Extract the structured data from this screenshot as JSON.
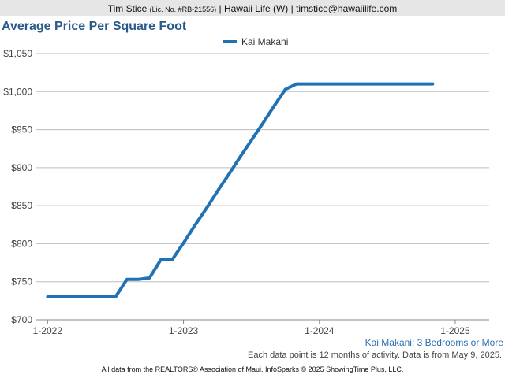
{
  "header": {
    "agent": "Tim Stice",
    "license": "(Lic. No. #RB-21556)",
    "rest": "| Hawaii Life (W) | timstice@hawaiilife.com"
  },
  "title": "Average Price Per Square Foot",
  "subtitle": "Kai Makani: 3 Bedrooms or More",
  "note": "Each data point is 12 months of activity. Data is from May 9, 2025.",
  "footer": "All data from the REALTORS® Association of Maui. InfoSparks © 2025 ShowingTime Plus, LLC.",
  "colors": {
    "series": "#2171b5",
    "grid": "#bdbdbd",
    "axis": "#888888"
  },
  "chart_data": {
    "type": "line",
    "ylim": [
      700,
      1050
    ],
    "xlim": [
      "2021-12",
      "2025-04"
    ],
    "y_ticks": [
      700,
      750,
      800,
      850,
      900,
      950,
      1000,
      1050
    ],
    "y_tick_labels": [
      "$700",
      "$750",
      "$800",
      "$850",
      "$900",
      "$950",
      "$1,000",
      "$1,050"
    ],
    "x_ticks": [
      "2022-01",
      "2023-01",
      "2024-01",
      "2025-01"
    ],
    "x_tick_labels": [
      "1-2022",
      "1-2023",
      "1-2024",
      "1-2025"
    ],
    "grid": true,
    "legend_position": "top-center",
    "series": [
      {
        "name": "Kai Makani",
        "x": [
          "2022-01",
          "2022-02",
          "2022-03",
          "2022-04",
          "2022-05",
          "2022-06",
          "2022-07",
          "2022-08",
          "2022-09",
          "2022-10",
          "2022-11",
          "2022-12",
          "2023-01",
          "2023-02",
          "2023-03",
          "2023-04",
          "2023-05",
          "2023-06",
          "2023-07",
          "2023-08",
          "2023-09",
          "2023-10",
          "2023-11",
          "2023-12",
          "2024-01",
          "2024-02",
          "2024-03",
          "2024-04",
          "2024-05",
          "2024-06",
          "2024-07",
          "2024-08",
          "2024-09",
          "2024-10",
          "2024-11"
        ],
        "values": [
          730,
          730,
          730,
          730,
          730,
          730,
          730,
          753,
          753,
          755,
          779,
          779,
          801,
          824,
          846,
          869,
          891,
          914,
          936,
          958,
          981,
          1003,
          1010,
          1010,
          1010,
          1010,
          1010,
          1010,
          1010,
          1010,
          1010,
          1010,
          1010,
          1010,
          1010
        ]
      }
    ]
  }
}
